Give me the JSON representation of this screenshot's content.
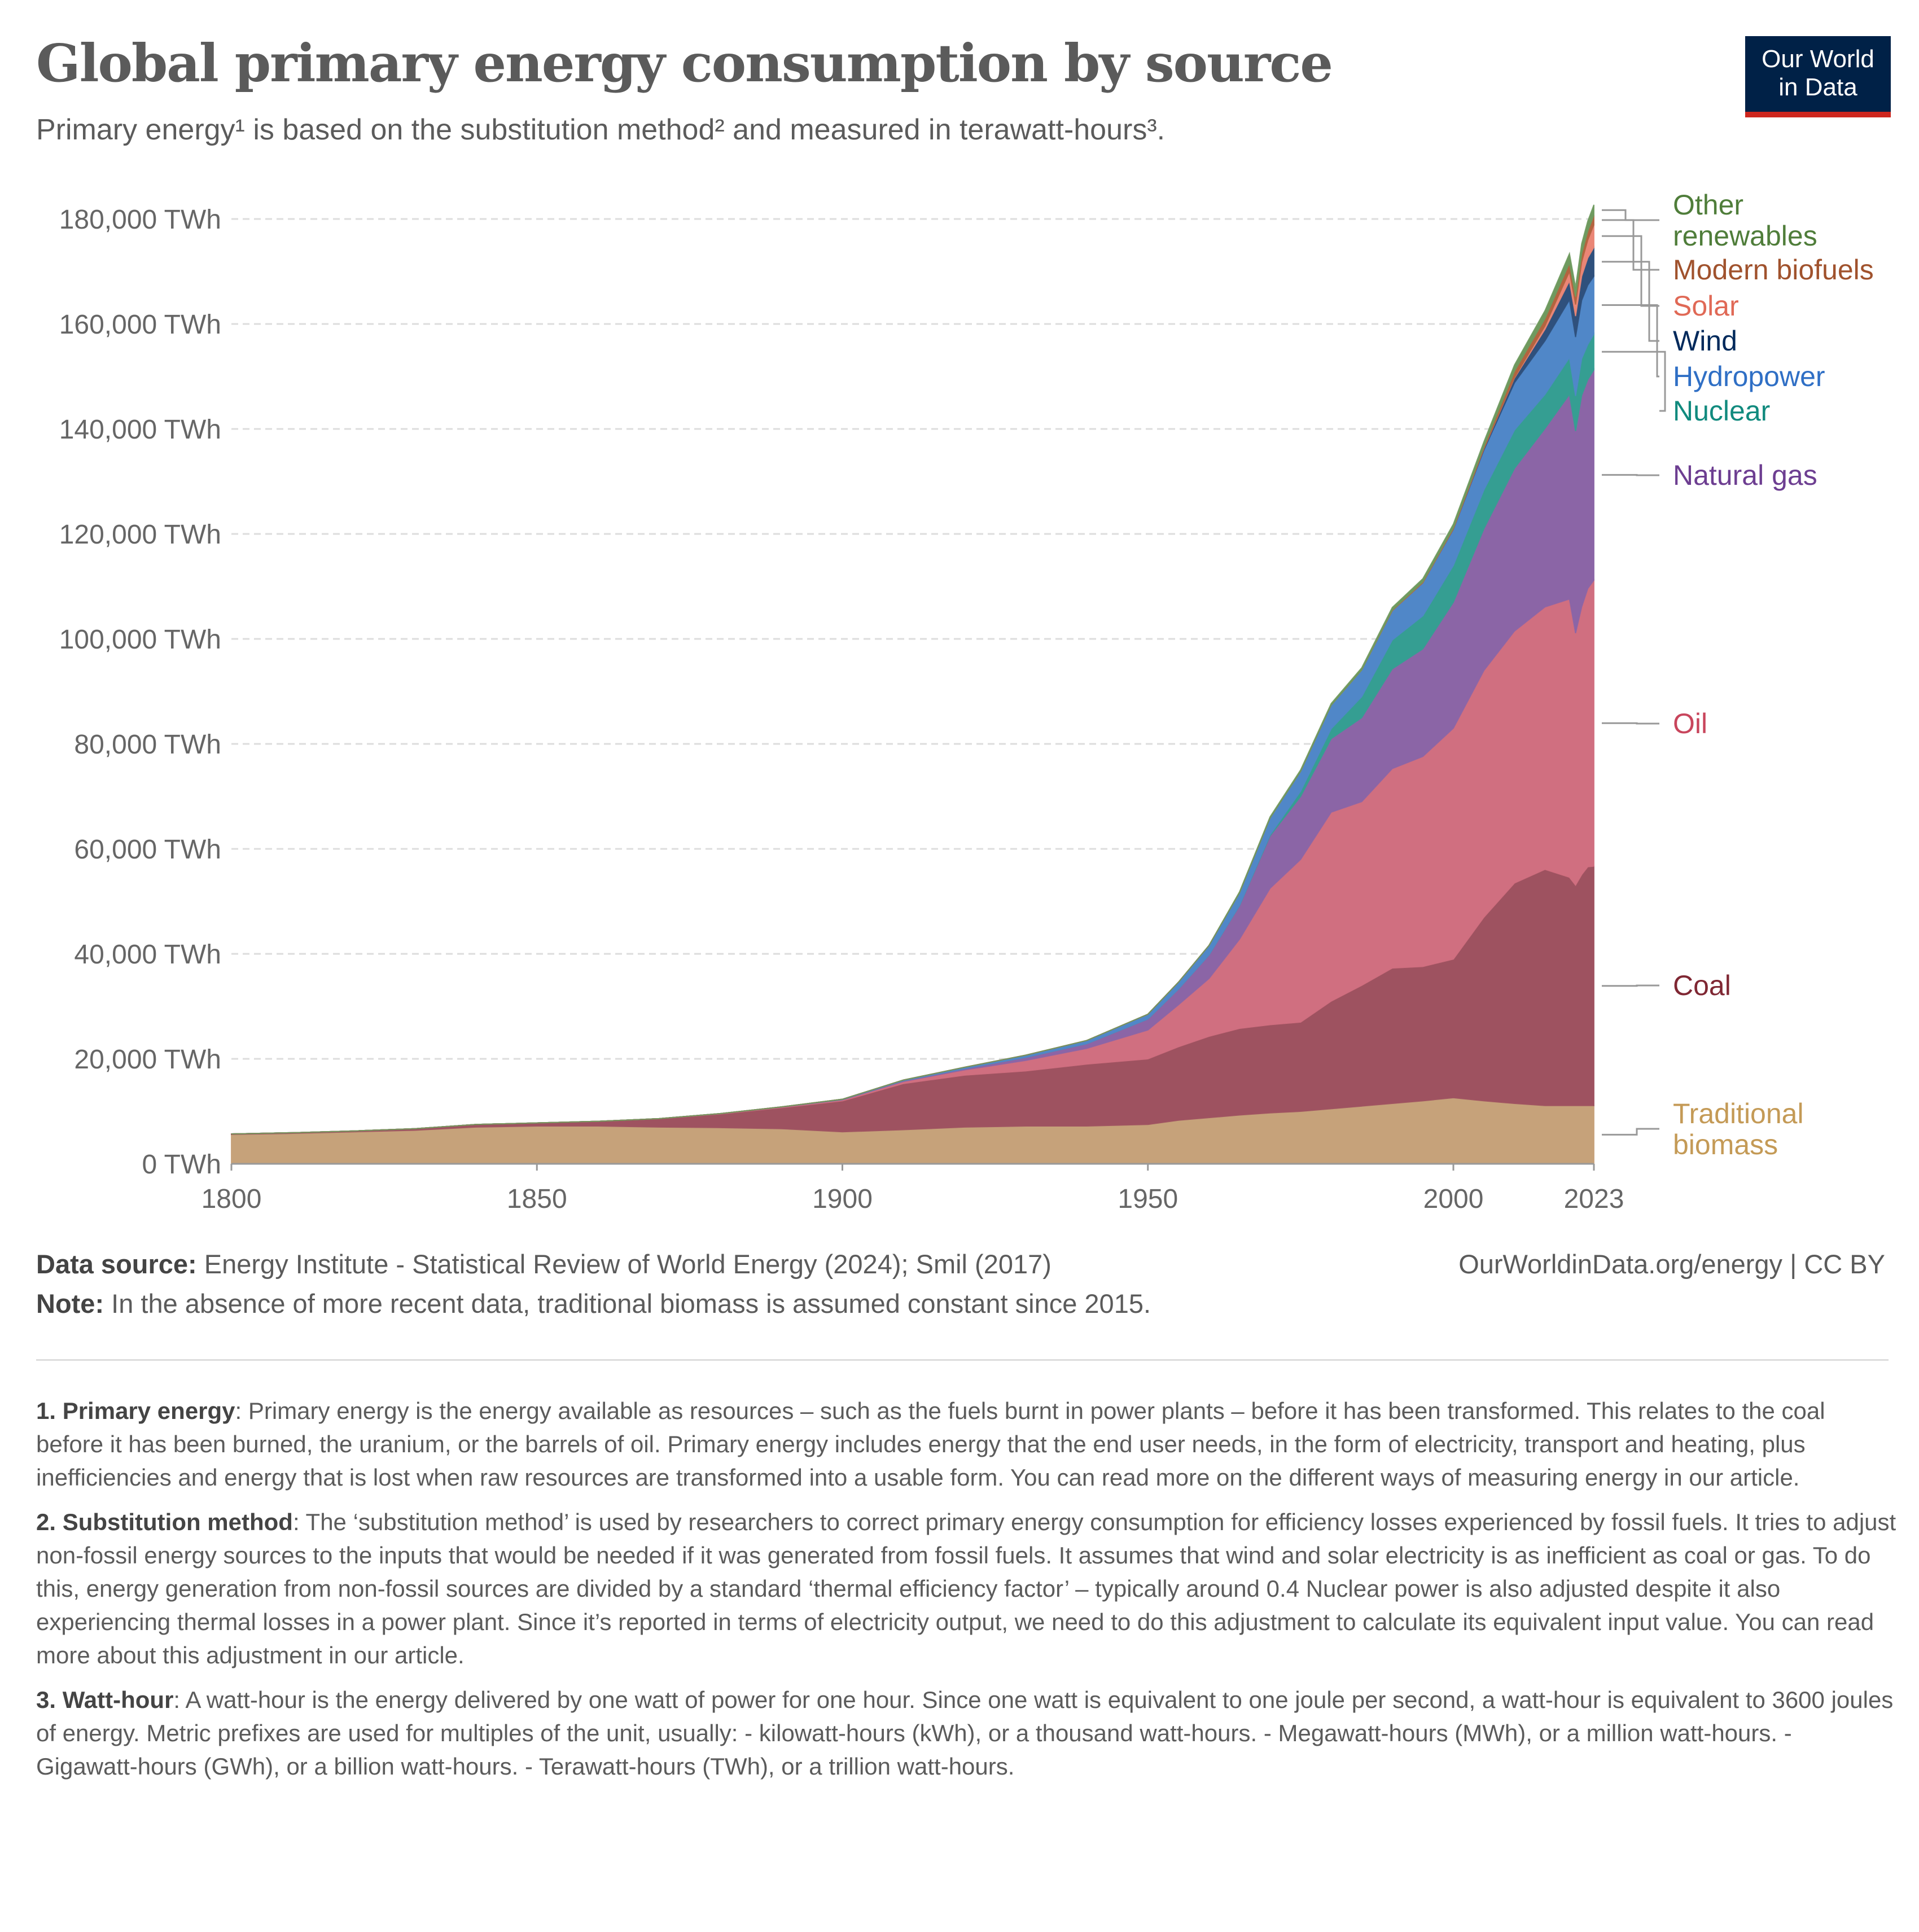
{
  "header": {
    "title": "Global primary energy consumption by source",
    "subtitle": "Primary energy¹ is based on the substitution method² and measured in terawatt-hours³.",
    "logo_line1": "Our World",
    "logo_line2": "in Data"
  },
  "chart_data": {
    "type": "area",
    "stacked": true,
    "title": "Global primary energy consumption by source",
    "ylabel": "",
    "xlabel": "",
    "ylim": [
      0,
      180000
    ],
    "xlim": [
      1800,
      2023
    ],
    "y_ticks": [
      "0 TWh",
      "20,000 TWh",
      "40,000 TWh",
      "60,000 TWh",
      "80,000 TWh",
      "100,000 TWh",
      "120,000 TWh",
      "140,000 TWh",
      "160,000 TWh",
      "180,000 TWh"
    ],
    "y_tick_values": [
      0,
      20000,
      40000,
      60000,
      80000,
      100000,
      120000,
      140000,
      160000,
      180000
    ],
    "x_ticks": [
      "1800",
      "1850",
      "1900",
      "1950",
      "2000",
      "2023"
    ],
    "x_tick_values": [
      1800,
      1850,
      1900,
      1950,
      2000,
      2023
    ],
    "grid": "horizontal dashed",
    "legend": "right (inline labels)",
    "x": [
      1800,
      1810,
      1820,
      1830,
      1840,
      1850,
      1860,
      1870,
      1880,
      1890,
      1900,
      1910,
      1920,
      1930,
      1940,
      1950,
      1955,
      1960,
      1965,
      1970,
      1975,
      1980,
      1985,
      1990,
      1995,
      2000,
      2005,
      2010,
      2015,
      2019,
      2020,
      2021,
      2022,
      2023
    ],
    "series": [
      {
        "name": "Traditional biomass",
        "color": "#c6a27a",
        "label_color": "#c49a56",
        "values": [
          5600,
          5800,
          6100,
          6400,
          7000,
          7200,
          7200,
          7000,
          6900,
          6700,
          6100,
          6500,
          7000,
          7200,
          7200,
          7500,
          8300,
          8800,
          9300,
          9700,
          10000,
          10500,
          11000,
          11500,
          12000,
          12600,
          12000,
          11500,
          11100,
          11100,
          11100,
          11100,
          11100,
          11100
        ]
      },
      {
        "name": "Coal",
        "color": "#9e5260",
        "label_color": "#7f2733",
        "values": [
          97,
          130,
          170,
          300,
          500,
          600,
          900,
          1600,
          2600,
          4000,
          5900,
          8800,
          9900,
          10500,
          11800,
          12500,
          14000,
          15500,
          16500,
          16800,
          17000,
          20500,
          23000,
          25800,
          25600,
          26400,
          35000,
          42000,
          45000,
          43500,
          42000,
          44000,
          45500,
          45600
        ]
      },
      {
        "name": "Oil",
        "color": "#d06f80",
        "label_color": "#c8455c",
        "values": [
          0,
          0,
          0,
          0,
          0,
          0,
          0,
          10,
          50,
          100,
          200,
          400,
          1000,
          2000,
          3000,
          5500,
          8000,
          11000,
          17000,
          26000,
          31000,
          36000,
          35000,
          38000,
          40000,
          44000,
          47000,
          48000,
          50000,
          53000,
          48000,
          51000,
          53000,
          54500
        ]
      },
      {
        "name": "Natural gas",
        "color": "#8b65a6",
        "label_color": "#6d3e91",
        "values": [
          0,
          0,
          0,
          0,
          0,
          0,
          0,
          0,
          20,
          40,
          60,
          150,
          250,
          600,
          900,
          2100,
          3000,
          4500,
          6400,
          10000,
          12000,
          14000,
          16000,
          19000,
          20500,
          24000,
          27000,
          31000,
          34000,
          39000,
          38500,
          40300,
          39800,
          40100
        ]
      },
      {
        "name": "Nuclear",
        "color": "#359e92",
        "label_color": "#118a7e",
        "values": [
          0,
          0,
          0,
          0,
          0,
          0,
          0,
          0,
          0,
          0,
          0,
          0,
          0,
          0,
          0,
          0,
          0,
          0,
          60,
          200,
          1000,
          1900,
          4000,
          5500,
          6300,
          7000,
          7400,
          7300,
          6500,
          7000,
          6700,
          7000,
          6700,
          6800
        ]
      },
      {
        "name": "Hydropower",
        "color": "#5087c8",
        "label_color": "#2f6fc5",
        "values": [
          0,
          0,
          0,
          0,
          0,
          0,
          0,
          0,
          0,
          10,
          50,
          120,
          250,
          400,
          600,
          900,
          1300,
          1800,
          2400,
          3200,
          3800,
          4500,
          5100,
          5600,
          6300,
          6900,
          7600,
          9000,
          10200,
          11000,
          11200,
          11100,
          11300,
          11000
        ]
      },
      {
        "name": "Wind",
        "color": "#2f507c",
        "label_color": "#00295b",
        "values": [
          0,
          0,
          0,
          0,
          0,
          0,
          0,
          0,
          0,
          0,
          0,
          0,
          0,
          0,
          0,
          0,
          0,
          0,
          0,
          0,
          0,
          0,
          0,
          0,
          20,
          80,
          260,
          900,
          2200,
          3600,
          4000,
          4600,
          5200,
          5500
        ]
      },
      {
        "name": "Solar",
        "color": "#ea8676",
        "label_color": "#e06956",
        "values": [
          0,
          0,
          0,
          0,
          0,
          0,
          0,
          0,
          0,
          0,
          0,
          0,
          0,
          0,
          0,
          0,
          0,
          0,
          0,
          0,
          0,
          0,
          0,
          0,
          0,
          0,
          10,
          90,
          650,
          1800,
          2200,
          2700,
          3400,
          4300
        ]
      },
      {
        "name": "Modern biofuels",
        "color": "#b3643f",
        "label_color": "#a0522d",
        "values": [
          0,
          0,
          0,
          0,
          0,
          0,
          0,
          0,
          0,
          0,
          0,
          0,
          0,
          0,
          0,
          0,
          0,
          0,
          0,
          0,
          0,
          0,
          0,
          100,
          150,
          200,
          400,
          1200,
          1400,
          1600,
          1500,
          1600,
          1700,
          1800
        ]
      },
      {
        "name": "Other renewables",
        "color": "#6f9a5f",
        "label_color": "#4f7d3a",
        "values": [
          0,
          0,
          0,
          0,
          0,
          0,
          0,
          0,
          0,
          0,
          0,
          0,
          0,
          0,
          0,
          0,
          0,
          0,
          150,
          200,
          250,
          300,
          400,
          500,
          600,
          700,
          900,
          1200,
          1500,
          1800,
          1800,
          1900,
          1900,
          2000
        ]
      }
    ]
  },
  "labels": {
    "other_1": "Other",
    "other_2": "renewables",
    "biomass_1": "Traditional",
    "biomass_2": "biomass"
  },
  "footer": {
    "source_label": "Data source:",
    "source_text": " Energy Institute - Statistical Review of World Energy (2024); Smil (2017)",
    "note_label": "Note:",
    "note_text": " In the absence of more recent data, traditional biomass is assumed constant since 2015.",
    "url": "OurWorldinData.org/energy | CC BY"
  },
  "notes": [
    {
      "label": "1. Primary energy",
      "text": ": Primary energy is the energy available as resources – such as the fuels burnt in power plants – before it has been transformed. This relates to the coal before it has been burned, the uranium, or the barrels of oil. Primary energy includes energy that the end user needs, in the form of electricity, transport and heating, plus inefficiencies and energy that is lost when raw resources are transformed into a usable form. You can read more on the different ways of measuring energy in our article."
    },
    {
      "label": "2. Substitution method",
      "text": ": The ‘substitution method’ is used by researchers to correct primary energy consumption for efficiency losses experienced by fossil fuels. It tries to adjust non-fossil energy sources to the inputs that would be needed if it was generated from fossil fuels. It assumes that wind and solar electricity is as inefficient as coal or gas. To do this, energy generation from non-fossil sources are divided by a standard ‘thermal efficiency factor’ – typically around 0.4 Nuclear power is also adjusted despite it also experiencing thermal losses in a power plant. Since it’s reported in terms of electricity output, we need to do this adjustment to calculate its equivalent input value. You can read more about this adjustment in our article."
    },
    {
      "label": "3. Watt-hour",
      "text": ": A watt-hour is the energy delivered by one watt of power for one hour. Since one watt is equivalent to one joule per second, a watt-hour is equivalent to 3600 joules of energy. Metric prefixes are used for multiples of the unit, usually: - kilowatt-hours (kWh), or a thousand watt-hours. - Megawatt-hours (MWh), or a million watt-hours. - Gigawatt-hours (GWh), or a billion watt-hours. - Terawatt-hours (TWh), or a trillion watt-hours."
    }
  ]
}
